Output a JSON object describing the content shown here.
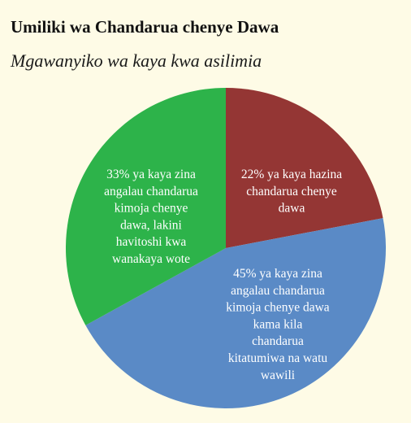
{
  "title": "Umiliki wa Chandarua chenye Dawa",
  "subtitle": "Mgawanyiko wa kaya kwa asilimia",
  "chart_data": {
    "type": "pie",
    "slices": [
      {
        "value": 22,
        "color": "#943634",
        "label_lines": [
          "22% ya kaya hazina",
          "chandarua chenye",
          "dawa"
        ]
      },
      {
        "value": 45,
        "color": "#5a8ac6",
        "label_lines": [
          "45% ya kaya zina",
          "angalau chandarua",
          "kimoja chenye dawa",
          "kama kila",
          "chandarua",
          "kitatumiwa na watu",
          "wawili"
        ]
      },
      {
        "value": 33,
        "color": "#2db34a",
        "label_lines": [
          "33% ya kaya zina",
          "angalau chandarua",
          "kimoja chenye",
          "dawa, lakini",
          "havitoshi kwa",
          "wanakaya wote"
        ]
      }
    ]
  }
}
